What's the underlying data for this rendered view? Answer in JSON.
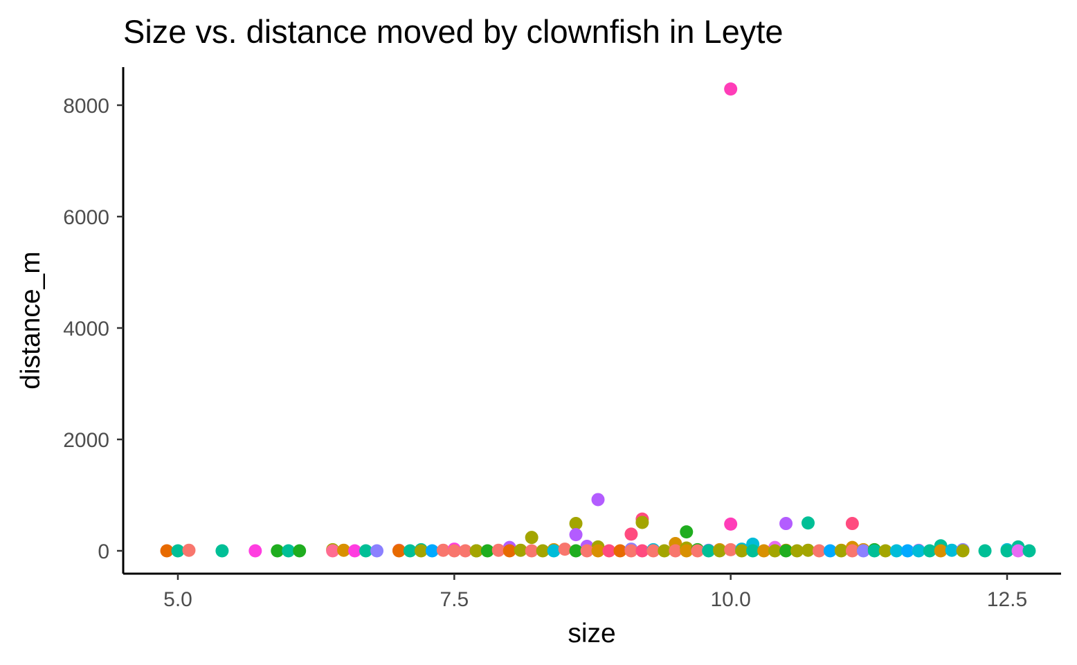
{
  "chart_data": {
    "type": "scatter",
    "title": "Size vs. distance moved by clownfish in Leyte",
    "xlabel": "size",
    "ylabel": "distance_m",
    "xlim": [
      4.5,
      13.0
    ],
    "ylim": [
      -400,
      8700
    ],
    "x_ticks": [
      {
        "value": 5.0,
        "label": "5.0"
      },
      {
        "value": 7.5,
        "label": "7.5"
      },
      {
        "value": 10.0,
        "label": "10.0"
      },
      {
        "value": 12.5,
        "label": "12.5"
      }
    ],
    "y_ticks": [
      {
        "value": 0,
        "label": "0"
      },
      {
        "value": 2000,
        "label": "2000"
      },
      {
        "value": 4000,
        "label": "4000"
      },
      {
        "value": 6000,
        "label": "6000"
      },
      {
        "value": 8000,
        "label": "8000"
      }
    ],
    "grid": false,
    "legend": "none",
    "points": [
      {
        "x": 10.0,
        "y": 8290,
        "color": "#FF3DB8"
      },
      {
        "x": 8.8,
        "y": 920,
        "color": "#B35CFF"
      },
      {
        "x": 9.2,
        "y": 570,
        "color": "#FF4B7F"
      },
      {
        "x": 9.2,
        "y": 510,
        "color": "#A3A500"
      },
      {
        "x": 8.6,
        "y": 490,
        "color": "#A3A500"
      },
      {
        "x": 10.0,
        "y": 480,
        "color": "#FF3DB8"
      },
      {
        "x": 10.5,
        "y": 490,
        "color": "#B35CFF"
      },
      {
        "x": 10.7,
        "y": 500,
        "color": "#00BF96"
      },
      {
        "x": 11.1,
        "y": 490,
        "color": "#FF4B7F"
      },
      {
        "x": 9.6,
        "y": 340,
        "color": "#1FAD1F"
      },
      {
        "x": 9.1,
        "y": 300,
        "color": "#FF4B7F"
      },
      {
        "x": 8.6,
        "y": 290,
        "color": "#B35CFF"
      },
      {
        "x": 8.2,
        "y": 240,
        "color": "#A3A500"
      },
      {
        "x": 9.5,
        "y": 130,
        "color": "#D89000"
      },
      {
        "x": 10.2,
        "y": 120,
        "color": "#00BCD8"
      },
      {
        "x": 11.9,
        "y": 90,
        "color": "#00BF96"
      },
      {
        "x": 12.6,
        "y": 70,
        "color": "#00BF96"
      },
      {
        "x": 8.0,
        "y": 60,
        "color": "#B35CFF"
      },
      {
        "x": 8.7,
        "y": 80,
        "color": "#B35CFF"
      },
      {
        "x": 8.8,
        "y": 70,
        "color": "#A3A500"
      },
      {
        "x": 10.4,
        "y": 60,
        "color": "#E76BF3"
      },
      {
        "x": 11.1,
        "y": 60,
        "color": "#D89000"
      },
      {
        "x": 4.9,
        "y": 0,
        "color": "#E76A00"
      },
      {
        "x": 5.0,
        "y": 0,
        "color": "#00BF96"
      },
      {
        "x": 5.1,
        "y": 10,
        "color": "#F8766D"
      },
      {
        "x": 5.4,
        "y": 0,
        "color": "#00BF96"
      },
      {
        "x": 5.7,
        "y": 0,
        "color": "#FF3DE0"
      },
      {
        "x": 5.9,
        "y": 0,
        "color": "#1FAD1F"
      },
      {
        "x": 6.0,
        "y": 0,
        "color": "#00BF96"
      },
      {
        "x": 6.1,
        "y": 0,
        "color": "#1FAD1F"
      },
      {
        "x": 6.4,
        "y": 20,
        "color": "#A3A500"
      },
      {
        "x": 6.4,
        "y": 0,
        "color": "#FF6C91"
      },
      {
        "x": 6.5,
        "y": 10,
        "color": "#D89000"
      },
      {
        "x": 6.6,
        "y": 0,
        "color": "#FF3DE0"
      },
      {
        "x": 6.7,
        "y": 0,
        "color": "#00BF96"
      },
      {
        "x": 6.8,
        "y": 0,
        "color": "#8B80FF"
      },
      {
        "x": 7.0,
        "y": 10,
        "color": "#F8766D"
      },
      {
        "x": 7.0,
        "y": 0,
        "color": "#E76A00"
      },
      {
        "x": 7.1,
        "y": 0,
        "color": "#00BF96"
      },
      {
        "x": 7.2,
        "y": 20,
        "color": "#00BF96"
      },
      {
        "x": 7.2,
        "y": 0,
        "color": "#A3A500"
      },
      {
        "x": 7.3,
        "y": 0,
        "color": "#00A9FF"
      },
      {
        "x": 7.4,
        "y": 10,
        "color": "#F8766D"
      },
      {
        "x": 7.5,
        "y": 30,
        "color": "#FF3DE0"
      },
      {
        "x": 7.5,
        "y": 0,
        "color": "#F8766D"
      },
      {
        "x": 7.6,
        "y": 0,
        "color": "#F8766D"
      },
      {
        "x": 7.7,
        "y": 0,
        "color": "#1FAD1F"
      },
      {
        "x": 7.7,
        "y": 0,
        "color": "#A3A500"
      },
      {
        "x": 7.8,
        "y": 0,
        "color": "#1FAD1F"
      },
      {
        "x": 7.9,
        "y": 10,
        "color": "#F8766D"
      },
      {
        "x": 8.0,
        "y": 0,
        "color": "#E76A00"
      },
      {
        "x": 8.1,
        "y": 10,
        "color": "#A3A500"
      },
      {
        "x": 8.2,
        "y": 0,
        "color": "#F8766D"
      },
      {
        "x": 8.3,
        "y": 0,
        "color": "#A3A500"
      },
      {
        "x": 8.4,
        "y": 20,
        "color": "#D89000"
      },
      {
        "x": 8.4,
        "y": 0,
        "color": "#00BCD8"
      },
      {
        "x": 8.5,
        "y": 30,
        "color": "#F8766D"
      },
      {
        "x": 8.6,
        "y": 0,
        "color": "#1FAD1F"
      },
      {
        "x": 8.7,
        "y": 0,
        "color": "#F8766D"
      },
      {
        "x": 8.8,
        "y": 0,
        "color": "#D89000"
      },
      {
        "x": 8.9,
        "y": 0,
        "color": "#FF4B7F"
      },
      {
        "x": 9.0,
        "y": 0,
        "color": "#E76A00"
      },
      {
        "x": 9.1,
        "y": 30,
        "color": "#8B80FF"
      },
      {
        "x": 9.1,
        "y": 0,
        "color": "#F8766D"
      },
      {
        "x": 9.2,
        "y": 0,
        "color": "#FF4B7F"
      },
      {
        "x": 9.3,
        "y": 20,
        "color": "#00BCD8"
      },
      {
        "x": 9.3,
        "y": 0,
        "color": "#F8766D"
      },
      {
        "x": 9.4,
        "y": 0,
        "color": "#A3A500"
      },
      {
        "x": 9.5,
        "y": 0,
        "color": "#F8766D"
      },
      {
        "x": 9.6,
        "y": 50,
        "color": "#A3A500"
      },
      {
        "x": 9.6,
        "y": 0,
        "color": "#D89000"
      },
      {
        "x": 9.7,
        "y": 20,
        "color": "#1FAD1F"
      },
      {
        "x": 9.7,
        "y": 0,
        "color": "#F8766D"
      },
      {
        "x": 9.8,
        "y": 10,
        "color": "#8B80FF"
      },
      {
        "x": 9.8,
        "y": 0,
        "color": "#00BF96"
      },
      {
        "x": 9.9,
        "y": 20,
        "color": "#D89000"
      },
      {
        "x": 9.9,
        "y": 0,
        "color": "#A3A500"
      },
      {
        "x": 10.0,
        "y": 20,
        "color": "#F8766D"
      },
      {
        "x": 10.1,
        "y": 30,
        "color": "#00BCD8"
      },
      {
        "x": 10.1,
        "y": 0,
        "color": "#A3A500"
      },
      {
        "x": 10.2,
        "y": 0,
        "color": "#00BF96"
      },
      {
        "x": 10.3,
        "y": 0,
        "color": "#D89000"
      },
      {
        "x": 10.4,
        "y": 0,
        "color": "#A3A500"
      },
      {
        "x": 10.5,
        "y": 10,
        "color": "#D89000"
      },
      {
        "x": 10.5,
        "y": 0,
        "color": "#1FAD1F"
      },
      {
        "x": 10.6,
        "y": 0,
        "color": "#A3A500"
      },
      {
        "x": 10.7,
        "y": 10,
        "color": "#A3A500"
      },
      {
        "x": 10.8,
        "y": 0,
        "color": "#F8766D"
      },
      {
        "x": 10.9,
        "y": 0,
        "color": "#00A9FF"
      },
      {
        "x": 11.0,
        "y": 10,
        "color": "#D89000"
      },
      {
        "x": 11.0,
        "y": 0,
        "color": "#A3A500"
      },
      {
        "x": 11.1,
        "y": 0,
        "color": "#F8766D"
      },
      {
        "x": 11.2,
        "y": 20,
        "color": "#D89000"
      },
      {
        "x": 11.2,
        "y": 0,
        "color": "#8B80FF"
      },
      {
        "x": 11.3,
        "y": 20,
        "color": "#1FAD1F"
      },
      {
        "x": 11.3,
        "y": 0,
        "color": "#00BF96"
      },
      {
        "x": 11.4,
        "y": 0,
        "color": "#A3A500"
      },
      {
        "x": 11.5,
        "y": 0,
        "color": "#00BCD8"
      },
      {
        "x": 11.6,
        "y": 0,
        "color": "#00A9FF"
      },
      {
        "x": 11.7,
        "y": 10,
        "color": "#E76BF3"
      },
      {
        "x": 11.7,
        "y": 0,
        "color": "#00BCD8"
      },
      {
        "x": 11.8,
        "y": 0,
        "color": "#00BF96"
      },
      {
        "x": 11.9,
        "y": 0,
        "color": "#D89000"
      },
      {
        "x": 12.0,
        "y": 10,
        "color": "#00BCD8"
      },
      {
        "x": 12.1,
        "y": 20,
        "color": "#8B80FF"
      },
      {
        "x": 12.1,
        "y": 0,
        "color": "#A3A500"
      },
      {
        "x": 12.3,
        "y": 0,
        "color": "#00BF96"
      },
      {
        "x": 12.5,
        "y": 20,
        "color": "#00BCD8"
      },
      {
        "x": 12.5,
        "y": 0,
        "color": "#00BF96"
      },
      {
        "x": 12.6,
        "y": 0,
        "color": "#E76BF3"
      },
      {
        "x": 12.7,
        "y": 0,
        "color": "#00BF96"
      }
    ]
  }
}
